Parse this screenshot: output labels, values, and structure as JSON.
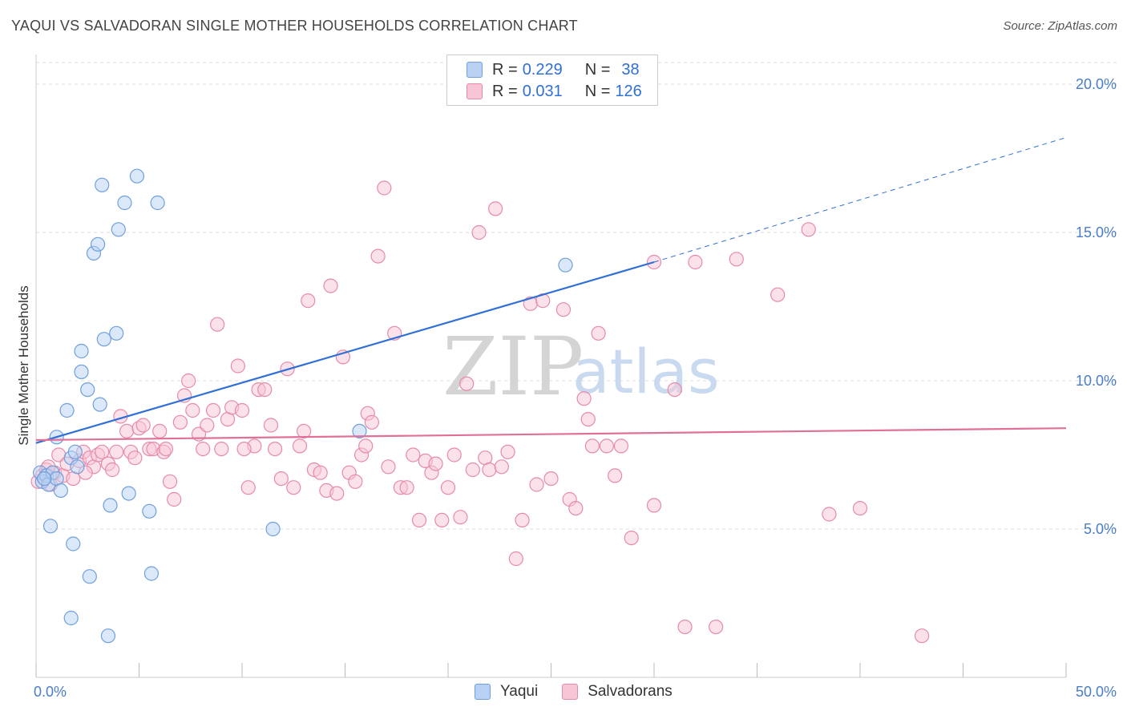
{
  "header": {
    "title": "YAQUI VS SALVADORAN SINGLE MOTHER HOUSEHOLDS CORRELATION CHART",
    "source": "Source: ZipAtlas.com"
  },
  "watermark": {
    "zip": "ZIP",
    "atlas": "atlas"
  },
  "colors": {
    "yaqui_fill": "#b8d1f3",
    "yaqui_stroke": "#6f9fdc",
    "yaqui_line": "#2f6fd6",
    "salv_fill": "#f7c5d5",
    "salv_stroke": "#e68aa9",
    "salv_line": "#e0709a"
  },
  "legend": {
    "rows": [
      {
        "r_label": "R = ",
        "r_value": "0.229",
        "n_label": "N = ",
        "n_value": "38"
      },
      {
        "r_label": "R = ",
        "r_value": "0.031",
        "n_label": "N = ",
        "n_value": "126"
      }
    ]
  },
  "bottom_legend": {
    "items": [
      "Yaqui",
      "Salvadorans"
    ]
  },
  "chart_data": {
    "type": "scatter",
    "title": "YAQUI VS SALVADORAN SINGLE MOTHER HOUSEHOLDS CORRELATION CHART",
    "xlabel": "",
    "ylabel": "Single Mother Households",
    "xlim": [
      0,
      50
    ],
    "ylim": [
      0,
      21
    ],
    "x_ticks": [
      "0.0%",
      "50.0%"
    ],
    "y_ticks": [
      {
        "value": 5,
        "label": "5.0%"
      },
      {
        "value": 10,
        "label": "10.0%"
      },
      {
        "value": 15,
        "label": "15.0%"
      },
      {
        "value": 20,
        "label": "20.0%"
      }
    ],
    "series": [
      {
        "name": "Yaqui",
        "r": 0.229,
        "n": 38,
        "trend": {
          "x0": 0,
          "y0": 7.9,
          "x1": 30,
          "y1": 14.0,
          "dash_to_x": 50,
          "dash_to_y": 18.2
        },
        "points": [
          [
            0.2,
            6.9
          ],
          [
            0.3,
            6.6
          ],
          [
            0.5,
            6.8
          ],
          [
            0.6,
            6.5
          ],
          [
            0.8,
            6.9
          ],
          [
            1.0,
            6.7
          ],
          [
            1.2,
            6.3
          ],
          [
            1.0,
            8.1
          ],
          [
            1.5,
            9.0
          ],
          [
            1.7,
            7.4
          ],
          [
            1.9,
            7.6
          ],
          [
            2.0,
            7.1
          ],
          [
            2.2,
            10.3
          ],
          [
            2.2,
            11.0
          ],
          [
            2.5,
            9.7
          ],
          [
            2.8,
            14.3
          ],
          [
            3.0,
            14.6
          ],
          [
            3.1,
            9.2
          ],
          [
            3.2,
            16.6
          ],
          [
            3.3,
            11.4
          ],
          [
            3.6,
            5.8
          ],
          [
            3.9,
            11.6
          ],
          [
            4.0,
            15.1
          ],
          [
            4.3,
            16.0
          ],
          [
            4.5,
            6.2
          ],
          [
            4.9,
            16.9
          ],
          [
            5.5,
            5.6
          ],
          [
            5.6,
            3.5
          ],
          [
            5.9,
            16.0
          ],
          [
            0.7,
            5.1
          ],
          [
            1.8,
            4.5
          ],
          [
            2.6,
            3.4
          ],
          [
            1.7,
            2.0
          ],
          [
            3.5,
            1.4
          ],
          [
            11.5,
            5.0
          ],
          [
            15.7,
            8.3
          ],
          [
            25.7,
            13.9
          ],
          [
            0.4,
            6.7
          ]
        ]
      },
      {
        "name": "Salvadorans",
        "r": 0.031,
        "n": 126,
        "trend": {
          "x0": 0,
          "y0": 8.0,
          "x1": 50,
          "y1": 8.4
        },
        "points": [
          [
            0.1,
            6.6
          ],
          [
            0.3,
            6.8
          ],
          [
            0.5,
            7.0
          ],
          [
            0.7,
            6.5
          ],
          [
            0.9,
            6.9
          ],
          [
            1.1,
            7.5
          ],
          [
            1.3,
            6.8
          ],
          [
            1.5,
            7.2
          ],
          [
            1.8,
            6.7
          ],
          [
            2.1,
            7.3
          ],
          [
            2.3,
            7.6
          ],
          [
            2.6,
            7.4
          ],
          [
            2.8,
            7.1
          ],
          [
            3.0,
            7.5
          ],
          [
            3.2,
            7.6
          ],
          [
            3.5,
            7.2
          ],
          [
            3.7,
            7.0
          ],
          [
            3.9,
            7.6
          ],
          [
            4.1,
            8.8
          ],
          [
            4.4,
            8.3
          ],
          [
            4.6,
            7.6
          ],
          [
            4.8,
            7.4
          ],
          [
            5.0,
            8.4
          ],
          [
            5.2,
            8.5
          ],
          [
            5.5,
            7.7
          ],
          [
            5.7,
            7.7
          ],
          [
            6.0,
            8.3
          ],
          [
            6.2,
            7.6
          ],
          [
            6.5,
            6.6
          ],
          [
            6.7,
            6.0
          ],
          [
            7.0,
            8.6
          ],
          [
            7.2,
            9.5
          ],
          [
            7.4,
            10.0
          ],
          [
            7.6,
            9.0
          ],
          [
            7.9,
            8.2
          ],
          [
            8.1,
            7.7
          ],
          [
            8.3,
            8.5
          ],
          [
            8.6,
            9.0
          ],
          [
            8.8,
            11.9
          ],
          [
            9.0,
            7.7
          ],
          [
            9.3,
            8.7
          ],
          [
            9.5,
            9.1
          ],
          [
            9.8,
            10.5
          ],
          [
            10.0,
            9.0
          ],
          [
            10.3,
            6.4
          ],
          [
            10.6,
            7.8
          ],
          [
            10.8,
            9.7
          ],
          [
            11.1,
            9.7
          ],
          [
            11.4,
            8.5
          ],
          [
            11.6,
            7.7
          ],
          [
            11.9,
            6.7
          ],
          [
            12.2,
            10.4
          ],
          [
            12.5,
            6.4
          ],
          [
            12.8,
            7.8
          ],
          [
            13.0,
            8.3
          ],
          [
            13.2,
            12.7
          ],
          [
            13.5,
            7.0
          ],
          [
            13.8,
            6.9
          ],
          [
            14.1,
            6.3
          ],
          [
            14.3,
            13.2
          ],
          [
            14.6,
            6.2
          ],
          [
            14.9,
            10.8
          ],
          [
            15.2,
            6.9
          ],
          [
            15.5,
            6.6
          ],
          [
            15.8,
            7.5
          ],
          [
            16.1,
            8.9
          ],
          [
            16.3,
            8.6
          ],
          [
            16.6,
            14.2
          ],
          [
            16.9,
            16.5
          ],
          [
            17.1,
            7.1
          ],
          [
            17.4,
            11.6
          ],
          [
            17.7,
            6.4
          ],
          [
            18.0,
            6.4
          ],
          [
            18.3,
            7.5
          ],
          [
            18.6,
            5.3
          ],
          [
            18.9,
            7.3
          ],
          [
            19.2,
            6.9
          ],
          [
            19.4,
            7.2
          ],
          [
            19.7,
            5.3
          ],
          [
            20.0,
            6.4
          ],
          [
            20.3,
            7.5
          ],
          [
            20.6,
            5.4
          ],
          [
            20.9,
            9.9
          ],
          [
            21.2,
            7.0
          ],
          [
            21.5,
            15.0
          ],
          [
            21.8,
            7.4
          ],
          [
            22.0,
            7.0
          ],
          [
            22.3,
            15.8
          ],
          [
            22.6,
            7.1
          ],
          [
            22.9,
            7.6
          ],
          [
            23.3,
            4.0
          ],
          [
            23.6,
            5.3
          ],
          [
            24.0,
            12.6
          ],
          [
            24.3,
            6.5
          ],
          [
            24.6,
            12.7
          ],
          [
            25.0,
            6.7
          ],
          [
            25.6,
            12.4
          ],
          [
            25.9,
            6.0
          ],
          [
            26.2,
            5.7
          ],
          [
            26.6,
            9.4
          ],
          [
            26.8,
            8.7
          ],
          [
            27.3,
            11.6
          ],
          [
            27.7,
            7.8
          ],
          [
            28.1,
            6.8
          ],
          [
            28.4,
            7.8
          ],
          [
            28.9,
            4.7
          ],
          [
            30.0,
            5.8
          ],
          [
            31.0,
            9.7
          ],
          [
            31.5,
            1.7
          ],
          [
            32.0,
            14.0
          ],
          [
            33.0,
            1.7
          ],
          [
            34.0,
            14.1
          ],
          [
            36.0,
            12.9
          ],
          [
            37.5,
            15.1
          ],
          [
            38.5,
            5.5
          ],
          [
            40.0,
            5.7
          ],
          [
            43.0,
            1.4
          ],
          [
            0.6,
            7.1
          ],
          [
            2.4,
            6.9
          ],
          [
            6.3,
            7.7
          ],
          [
            10.1,
            7.7
          ],
          [
            16.0,
            7.8
          ],
          [
            27.0,
            7.8
          ],
          [
            30.0,
            14.0
          ]
        ]
      }
    ]
  }
}
